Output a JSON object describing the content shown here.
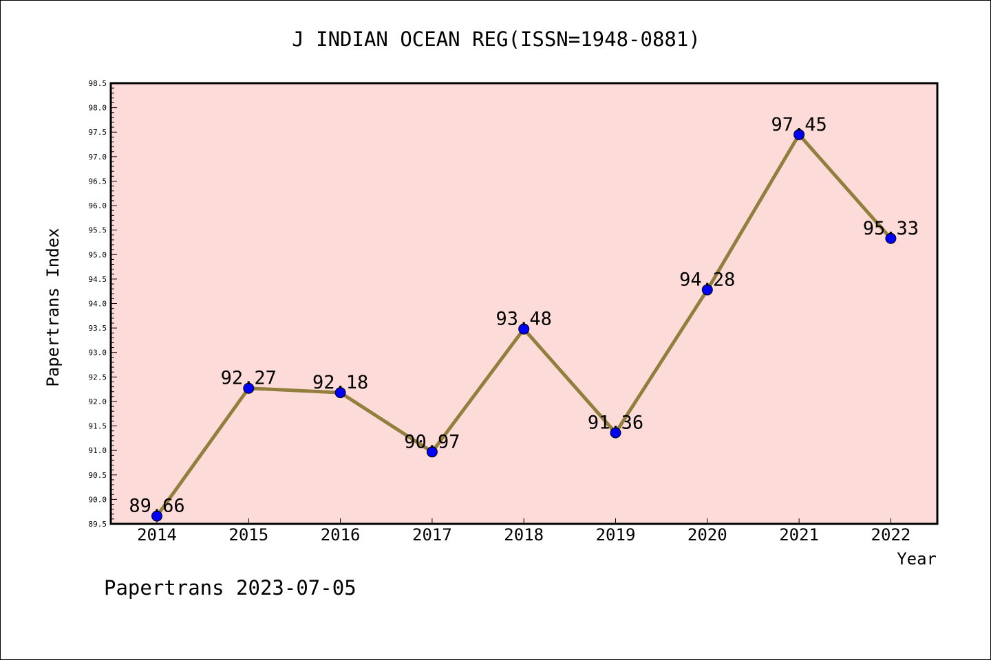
{
  "chart_data": {
    "type": "line",
    "title": "J INDIAN OCEAN REG(ISSN=1948-0881)",
    "xlabel": "Year",
    "ylabel": "Papertrans Index",
    "categories": [
      "2014",
      "2015",
      "2016",
      "2017",
      "2018",
      "2019",
      "2020",
      "2021",
      "2022"
    ],
    "series": [
      {
        "values": [
          89.66,
          92.27,
          92.18,
          90.97,
          93.48,
          91.36,
          94.28,
          97.45,
          95.33
        ],
        "labels": [
          "89.66",
          "92.27",
          "92.18",
          "90.97",
          "93.48",
          "91.36",
          "94.28",
          "97.45",
          "95.33"
        ]
      }
    ],
    "ylim": [
      89.5,
      98.5
    ],
    "yticks": [
      "89.5",
      "90.0",
      "90.5",
      "91.0",
      "91.5",
      "92.0",
      "92.5",
      "93.0",
      "93.5",
      "94.0",
      "94.5",
      "95.0",
      "95.5",
      "96.0",
      "96.5",
      "97.0",
      "97.5",
      "98.0",
      "98.5"
    ],
    "grid": false,
    "legend": "none",
    "colors": {
      "plot_background": "#fddbd8",
      "line": "#927f3e",
      "marker": "#0000f5",
      "frame": "#000000"
    },
    "footer": "Papertrans 2023-07-05"
  }
}
